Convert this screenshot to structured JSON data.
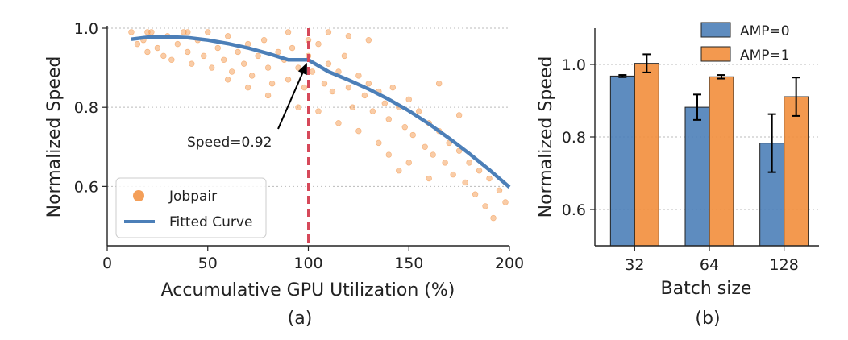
{
  "chart_data": [
    {
      "type": "scatter",
      "caption": "(a)",
      "xlabel": "Accumulative GPU Utilization (%)",
      "ylabel": "Normalized Speed",
      "xlim": [
        0,
        200
      ],
      "ylim": [
        0.45,
        1.0
      ],
      "xticks": [
        0,
        50,
        100,
        150,
        200
      ],
      "yticks": [
        0.6,
        0.8,
        1.0
      ],
      "grid": "horizontal dotted",
      "legend_placement": "lower-left",
      "legend": [
        "Jobpair",
        "Fitted Curve"
      ],
      "series": [
        {
          "name": "Jobpair",
          "kind": "scatter",
          "color": "#f28e3c",
          "points": [
            [
              12,
              0.99
            ],
            [
              15,
              0.96
            ],
            [
              18,
              0.97
            ],
            [
              20,
              0.94
            ],
            [
              22,
              0.99
            ],
            [
              25,
              0.95
            ],
            [
              28,
              0.93
            ],
            [
              30,
              0.98
            ],
            [
              32,
              0.92
            ],
            [
              35,
              0.96
            ],
            [
              38,
              0.99
            ],
            [
              40,
              0.94
            ],
            [
              42,
              0.91
            ],
            [
              45,
              0.97
            ],
            [
              48,
              0.93
            ],
            [
              50,
              0.99
            ],
            [
              52,
              0.9
            ],
            [
              55,
              0.95
            ],
            [
              58,
              0.92
            ],
            [
              60,
              0.98
            ],
            [
              62,
              0.89
            ],
            [
              65,
              0.94
            ],
            [
              68,
              0.91
            ],
            [
              70,
              0.96
            ],
            [
              72,
              0.88
            ],
            [
              75,
              0.93
            ],
            [
              78,
              0.97
            ],
            [
              80,
              0.9
            ],
            [
              82,
              0.86
            ],
            [
              85,
              0.94
            ],
            [
              88,
              0.92
            ],
            [
              90,
              0.87
            ],
            [
              92,
              0.95
            ],
            [
              95,
              0.9
            ],
            [
              98,
              0.85
            ],
            [
              100,
              0.93
            ],
            [
              102,
              0.89
            ],
            [
              105,
              0.96
            ],
            [
              108,
              0.86
            ],
            [
              110,
              0.91
            ],
            [
              112,
              0.84
            ],
            [
              115,
              0.89
            ],
            [
              118,
              0.93
            ],
            [
              120,
              0.85
            ],
            [
              122,
              0.8
            ],
            [
              125,
              0.88
            ],
            [
              128,
              0.83
            ],
            [
              130,
              0.86
            ],
            [
              132,
              0.79
            ],
            [
              135,
              0.84
            ],
            [
              138,
              0.81
            ],
            [
              140,
              0.77
            ],
            [
              142,
              0.85
            ],
            [
              145,
              0.8
            ],
            [
              148,
              0.75
            ],
            [
              150,
              0.82
            ],
            [
              152,
              0.73
            ],
            [
              155,
              0.79
            ],
            [
              158,
              0.7
            ],
            [
              160,
              0.76
            ],
            [
              162,
              0.68
            ],
            [
              165,
              0.74
            ],
            [
              168,
              0.66
            ],
            [
              170,
              0.71
            ],
            [
              172,
              0.63
            ],
            [
              175,
              0.69
            ],
            [
              178,
              0.61
            ],
            [
              180,
              0.66
            ],
            [
              183,
              0.58
            ],
            [
              185,
              0.64
            ],
            [
              188,
              0.55
            ],
            [
              190,
              0.62
            ],
            [
              192,
              0.52
            ],
            [
              195,
              0.59
            ],
            [
              198,
              0.56
            ],
            [
              150,
              0.66
            ],
            [
              145,
              0.64
            ],
            [
              160,
              0.62
            ],
            [
              140,
              0.68
            ],
            [
              135,
              0.71
            ],
            [
              90,
              0.99
            ],
            [
              110,
              0.99
            ],
            [
              120,
              0.98
            ],
            [
              130,
              0.97
            ],
            [
              60,
              0.87
            ],
            [
              70,
              0.85
            ],
            [
              80,
              0.83
            ],
            [
              95,
              0.8
            ],
            [
              105,
              0.79
            ],
            [
              115,
              0.76
            ],
            [
              125,
              0.74
            ],
            [
              100,
              0.97
            ],
            [
              40,
              0.99
            ],
            [
              20,
              0.99
            ],
            [
              165,
              0.86
            ],
            [
              175,
              0.78
            ]
          ]
        },
        {
          "name": "Fitted Curve",
          "kind": "line",
          "color": "#4c7fb8",
          "points": [
            [
              12,
              0.972
            ],
            [
              20,
              0.977
            ],
            [
              30,
              0.978
            ],
            [
              40,
              0.976
            ],
            [
              50,
              0.97
            ],
            [
              60,
              0.961
            ],
            [
              70,
              0.95
            ],
            [
              80,
              0.936
            ],
            [
              90,
              0.92
            ],
            [
              100,
              0.92
            ],
            [
              110,
              0.89
            ],
            [
              120,
              0.869
            ],
            [
              130,
              0.846
            ],
            [
              140,
              0.82
            ],
            [
              150,
              0.791
            ],
            [
              160,
              0.758
            ],
            [
              170,
              0.722
            ],
            [
              180,
              0.683
            ],
            [
              190,
              0.642
            ],
            [
              200,
              0.598
            ]
          ]
        }
      ],
      "vline": {
        "x": 100,
        "color": "#d6495a"
      },
      "annotation": {
        "text": "Speed=0.92",
        "x": 100,
        "y": 0.92
      }
    },
    {
      "type": "bar",
      "caption": "(b)",
      "xlabel": "Batch size",
      "ylabel": "Normalized Speed",
      "ylim": [
        0.5,
        1.1
      ],
      "yticks": [
        0.6,
        0.8,
        1.0
      ],
      "grid": "horizontal dotted",
      "legend_placement": "top-right",
      "categories": [
        "32",
        "64",
        "128"
      ],
      "series": [
        {
          "name": "AMP=0",
          "color": "#4c7fb8",
          "values": [
            0.968,
            0.882,
            0.783
          ],
          "errors": [
            0.003,
            0.035,
            0.08
          ]
        },
        {
          "name": "AMP=1",
          "color": "#f28e3c",
          "values": [
            1.003,
            0.966,
            0.911
          ],
          "errors": [
            0.025,
            0.005,
            0.053
          ]
        }
      ]
    }
  ]
}
